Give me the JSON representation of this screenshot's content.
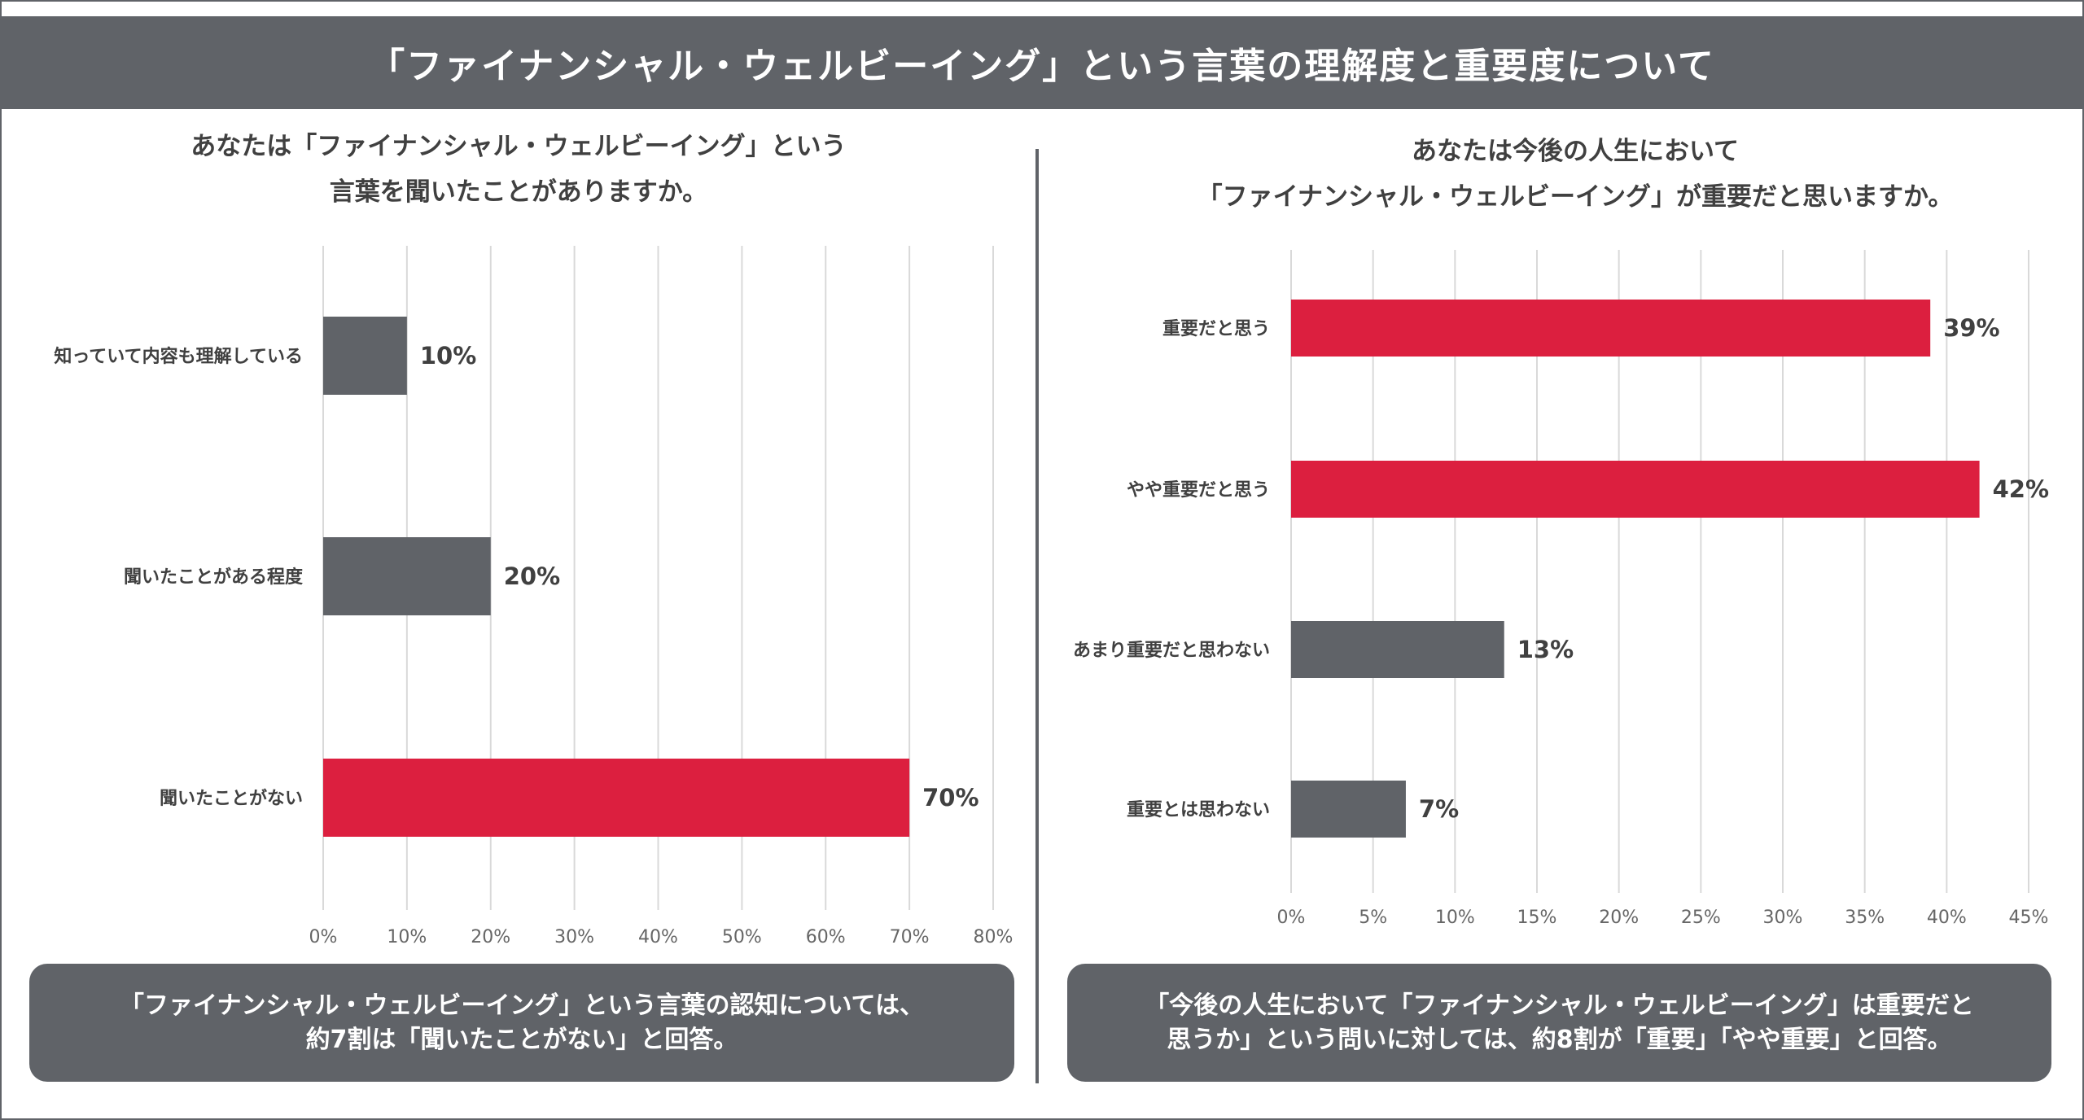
{
  "title": "「ファイナンシャル・ウェルビーイング」という言葉の理解度と重要度について",
  "colors": {
    "gray": "#606368",
    "red": "#dc1f3f",
    "grid": "#d9d9d9"
  },
  "chart_data": [
    {
      "type": "bar",
      "orientation": "horizontal",
      "title_lines": [
        "あなたは「ファイナンシャル・ウェルビーイング」という",
        "言葉を聞いたことがありますか。"
      ],
      "categories": [
        "知っていて内容も理解している",
        "聞いたことがある程度",
        "聞いたことがない"
      ],
      "values": [
        10,
        20,
        70
      ],
      "value_labels": [
        "10%",
        "20%",
        "70%"
      ],
      "bar_colors": [
        "#606368",
        "#606368",
        "#dc1f3f"
      ],
      "xlim": [
        0,
        80
      ],
      "ticks": [
        "0%",
        "10%",
        "20%",
        "30%",
        "40%",
        "50%",
        "60%",
        "70%",
        "80%"
      ],
      "tick_values": [
        0,
        10,
        20,
        30,
        40,
        50,
        60,
        70,
        80
      ],
      "grid": true,
      "note_lines": [
        "「ファイナンシャル・ウェルビーイング」という言葉の認知については、",
        "約7割は「聞いたことがない」と回答。"
      ]
    },
    {
      "type": "bar",
      "orientation": "horizontal",
      "title_lines": [
        "あなたは今後の人生において",
        "「ファイナンシャル・ウェルビーイング」が重要だと思いますか。"
      ],
      "categories": [
        "重要だと思う",
        "やや重要だと思う",
        "あまり重要だと思わない",
        "重要とは思わない"
      ],
      "values": [
        39,
        42,
        13,
        7
      ],
      "value_labels": [
        "39%",
        "42%",
        "13%",
        "7%"
      ],
      "bar_colors": [
        "#dc1f3f",
        "#dc1f3f",
        "#606368",
        "#606368"
      ],
      "xlim": [
        0,
        45
      ],
      "ticks": [
        "0%",
        "5%",
        "10%",
        "15%",
        "20%",
        "25%",
        "30%",
        "35%",
        "40%",
        "45%"
      ],
      "tick_values": [
        0,
        5,
        10,
        15,
        20,
        25,
        30,
        35,
        40,
        45
      ],
      "grid": true,
      "note_lines": [
        "「今後の人生において「ファイナンシャル・ウェルビーイング」は重要だと",
        "思うか」という問いに対しては、約8割が「重要」「やや重要」と回答。"
      ]
    }
  ]
}
